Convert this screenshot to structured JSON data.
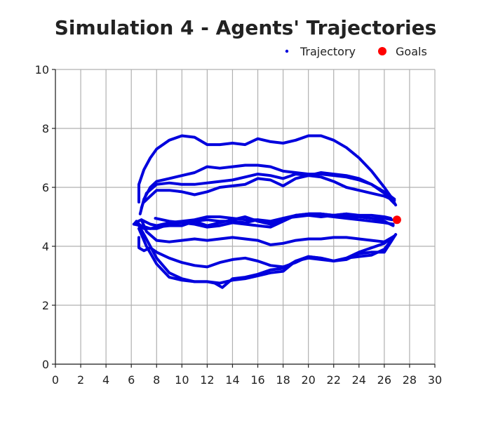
{
  "chart_data": {
    "type": "line",
    "title": "Simulation 4 - Agents' Trajectories",
    "xlabel": "",
    "ylabel": "",
    "xlim": [
      0,
      30
    ],
    "ylim": [
      0,
      10
    ],
    "xticks": [
      0,
      2,
      4,
      6,
      8,
      10,
      12,
      14,
      16,
      18,
      20,
      22,
      24,
      26,
      28,
      30
    ],
    "yticks": [
      0,
      2,
      4,
      6,
      8,
      10
    ],
    "grid": true,
    "legend": {
      "placement": "top-right",
      "entries": [
        {
          "label": "Trajectory",
          "marker": "small-dot",
          "color": "#0000dd"
        },
        {
          "label": "Goals",
          "marker": "dot",
          "color": "#ff0000"
        }
      ]
    },
    "colors": {
      "trajectory": "#0000dd",
      "goal": "#ff0000"
    },
    "series": [
      {
        "name": "Trajectory",
        "points": [
          [
            6.6,
            5.5
          ],
          [
            6.6,
            6.1
          ],
          [
            7.0,
            6.6
          ],
          [
            7.5,
            7.0
          ],
          [
            8.0,
            7.3
          ],
          [
            9.0,
            7.6
          ],
          [
            10.0,
            7.75
          ],
          [
            11.0,
            7.7
          ],
          [
            12.0,
            7.45
          ],
          [
            13.0,
            7.45
          ],
          [
            14.0,
            7.5
          ],
          [
            15.0,
            7.45
          ],
          [
            16.0,
            7.65
          ],
          [
            17.0,
            7.55
          ],
          [
            18.0,
            7.5
          ],
          [
            19.0,
            7.6
          ],
          [
            20.0,
            7.75
          ],
          [
            21.0,
            7.75
          ],
          [
            22.0,
            7.6
          ],
          [
            23.0,
            7.35
          ],
          [
            24.0,
            7.0
          ],
          [
            25.0,
            6.55
          ],
          [
            26.0,
            6.0
          ],
          [
            26.5,
            5.7
          ],
          [
            26.9,
            5.4
          ]
        ]
      },
      {
        "name": "Trajectory",
        "points": [
          [
            6.7,
            5.1
          ],
          [
            7.0,
            5.6
          ],
          [
            7.5,
            6.0
          ],
          [
            8.0,
            6.2
          ],
          [
            9.0,
            6.3
          ],
          [
            10.0,
            6.4
          ],
          [
            11.0,
            6.5
          ],
          [
            12.0,
            6.7
          ],
          [
            13.0,
            6.65
          ],
          [
            14.0,
            6.7
          ],
          [
            15.0,
            6.75
          ],
          [
            16.0,
            6.75
          ],
          [
            17.0,
            6.7
          ],
          [
            18.0,
            6.55
          ],
          [
            19.0,
            6.5
          ],
          [
            20.0,
            6.45
          ],
          [
            21.0,
            6.45
          ],
          [
            22.0,
            6.4
          ],
          [
            23.0,
            6.35
          ],
          [
            24.0,
            6.25
          ],
          [
            25.0,
            6.1
          ],
          [
            26.0,
            5.8
          ],
          [
            26.8,
            5.45
          ]
        ]
      },
      {
        "name": "Trajectory",
        "points": [
          [
            6.8,
            5.3
          ],
          [
            7.2,
            5.8
          ],
          [
            8.0,
            6.1
          ],
          [
            9.0,
            6.15
          ],
          [
            10.0,
            6.1
          ],
          [
            11.0,
            6.1
          ],
          [
            12.0,
            6.15
          ],
          [
            13.0,
            6.2
          ],
          [
            14.0,
            6.25
          ],
          [
            15.0,
            6.35
          ],
          [
            16.0,
            6.45
          ],
          [
            17.0,
            6.4
          ],
          [
            18.0,
            6.3
          ],
          [
            19.0,
            6.45
          ],
          [
            20.0,
            6.4
          ],
          [
            21.0,
            6.5
          ],
          [
            22.0,
            6.45
          ],
          [
            23.0,
            6.4
          ],
          [
            24.0,
            6.3
          ],
          [
            25.0,
            6.1
          ],
          [
            26.0,
            5.85
          ],
          [
            26.8,
            5.6
          ]
        ]
      },
      {
        "name": "Trajectory",
        "points": [
          [
            7.0,
            5.5
          ],
          [
            8.0,
            5.9
          ],
          [
            9.0,
            5.9
          ],
          [
            10.0,
            5.85
          ],
          [
            11.0,
            5.75
          ],
          [
            12.0,
            5.85
          ],
          [
            13.0,
            6.0
          ],
          [
            14.0,
            6.05
          ],
          [
            15.0,
            6.1
          ],
          [
            16.0,
            6.3
          ],
          [
            17.0,
            6.25
          ],
          [
            18.0,
            6.05
          ],
          [
            19.0,
            6.3
          ],
          [
            20.0,
            6.4
          ],
          [
            21.0,
            6.35
          ],
          [
            22.0,
            6.2
          ],
          [
            23.0,
            6.0
          ],
          [
            24.0,
            5.9
          ],
          [
            25.0,
            5.8
          ],
          [
            26.0,
            5.7
          ],
          [
            26.8,
            5.55
          ]
        ]
      },
      {
        "name": "Trajectory",
        "points": [
          [
            6.3,
            4.8
          ],
          [
            6.8,
            4.9
          ],
          [
            7.5,
            4.75
          ],
          [
            8.0,
            4.7
          ],
          [
            9.0,
            4.8
          ],
          [
            10.0,
            4.85
          ],
          [
            11.0,
            4.9
          ],
          [
            12.0,
            5.0
          ],
          [
            13.0,
            5.0
          ],
          [
            14.0,
            4.95
          ],
          [
            15.0,
            4.9
          ],
          [
            16.0,
            4.9
          ],
          [
            17.0,
            4.85
          ],
          [
            18.0,
            4.95
          ],
          [
            19.0,
            5.05
          ],
          [
            20.0,
            5.1
          ],
          [
            21.0,
            5.1
          ],
          [
            22.0,
            5.05
          ],
          [
            23.0,
            5.1
          ],
          [
            24.0,
            5.05
          ],
          [
            25.0,
            5.05
          ],
          [
            26.0,
            5.0
          ],
          [
            26.5,
            4.95
          ]
        ]
      },
      {
        "name": "Trajectory",
        "points": [
          [
            6.2,
            4.75
          ],
          [
            6.8,
            4.7
          ],
          [
            7.5,
            4.6
          ],
          [
            8.0,
            4.65
          ],
          [
            9.0,
            4.7
          ],
          [
            10.0,
            4.7
          ],
          [
            11.0,
            4.85
          ],
          [
            12.0,
            4.7
          ],
          [
            13.0,
            4.8
          ],
          [
            14.0,
            4.9
          ],
          [
            15.0,
            5.0
          ],
          [
            16.0,
            4.85
          ],
          [
            17.0,
            4.75
          ],
          [
            18.0,
            4.9
          ],
          [
            19.0,
            5.05
          ],
          [
            20.0,
            5.1
          ],
          [
            21.0,
            5.1
          ],
          [
            22.0,
            5.05
          ],
          [
            23.0,
            5.0
          ],
          [
            24.0,
            5.0
          ],
          [
            25.0,
            4.95
          ],
          [
            26.0,
            4.95
          ],
          [
            26.6,
            4.9
          ]
        ]
      },
      {
        "name": "Trajectory",
        "points": [
          [
            6.5,
            4.8
          ],
          [
            7.0,
            4.6
          ],
          [
            8.0,
            4.6
          ],
          [
            9.0,
            4.75
          ],
          [
            10.0,
            4.8
          ],
          [
            11.0,
            4.75
          ],
          [
            12.0,
            4.65
          ],
          [
            13.0,
            4.7
          ],
          [
            14.0,
            4.8
          ],
          [
            15.0,
            4.75
          ],
          [
            16.0,
            4.7
          ],
          [
            17.0,
            4.65
          ],
          [
            18.0,
            4.85
          ],
          [
            19.0,
            5.05
          ],
          [
            20.0,
            5.05
          ],
          [
            21.0,
            5.05
          ],
          [
            22.0,
            5.0
          ],
          [
            23.0,
            4.95
          ],
          [
            24.0,
            4.9
          ],
          [
            25.0,
            4.85
          ],
          [
            26.0,
            4.8
          ],
          [
            26.7,
            4.75
          ]
        ]
      },
      {
        "name": "Trajectory",
        "points": [
          [
            7.9,
            4.95
          ],
          [
            9.0,
            4.85
          ],
          [
            10.0,
            4.8
          ],
          [
            11.0,
            4.85
          ],
          [
            12.0,
            4.9
          ],
          [
            13.0,
            4.85
          ],
          [
            14.0,
            4.85
          ],
          [
            15.0,
            4.8
          ],
          [
            16.0,
            4.9
          ],
          [
            17.0,
            4.8
          ],
          [
            18.0,
            4.95
          ],
          [
            19.0,
            5.0
          ],
          [
            20.0,
            5.05
          ],
          [
            21.0,
            5.0
          ],
          [
            22.0,
            5.05
          ],
          [
            23.0,
            5.1
          ],
          [
            24.0,
            5.0
          ],
          [
            25.0,
            4.95
          ],
          [
            26.0,
            4.85
          ],
          [
            26.7,
            4.7
          ]
        ]
      },
      {
        "name": "Trajectory",
        "points": [
          [
            6.8,
            4.9
          ],
          [
            7.2,
            4.5
          ],
          [
            8.0,
            4.2
          ],
          [
            9.0,
            4.15
          ],
          [
            10.0,
            4.2
          ],
          [
            11.0,
            4.25
          ],
          [
            12.0,
            4.2
          ],
          [
            13.0,
            4.25
          ],
          [
            14.0,
            4.3
          ],
          [
            15.0,
            4.25
          ],
          [
            16.0,
            4.2
          ],
          [
            17.0,
            4.05
          ],
          [
            18.0,
            4.1
          ],
          [
            19.0,
            4.2
          ],
          [
            20.0,
            4.25
          ],
          [
            21.0,
            4.25
          ],
          [
            22.0,
            4.3
          ],
          [
            23.0,
            4.3
          ],
          [
            24.0,
            4.25
          ],
          [
            25.0,
            4.2
          ],
          [
            26.0,
            4.15
          ],
          [
            26.8,
            4.35
          ]
        ]
      },
      {
        "name": "Trajectory",
        "points": [
          [
            6.6,
            4.3
          ],
          [
            6.6,
            3.95
          ],
          [
            7.0,
            3.85
          ],
          [
            7.5,
            3.95
          ],
          [
            8.0,
            3.8
          ],
          [
            9.0,
            3.6
          ],
          [
            10.0,
            3.45
          ],
          [
            11.0,
            3.35
          ],
          [
            12.0,
            3.3
          ],
          [
            13.0,
            3.45
          ],
          [
            14.0,
            3.55
          ],
          [
            15.0,
            3.6
          ],
          [
            16.0,
            3.5
          ],
          [
            17.0,
            3.35
          ],
          [
            18.0,
            3.3
          ],
          [
            19.0,
            3.45
          ],
          [
            20.0,
            3.65
          ],
          [
            21.0,
            3.6
          ],
          [
            22.0,
            3.5
          ],
          [
            23.0,
            3.6
          ],
          [
            24.0,
            3.8
          ],
          [
            25.0,
            3.95
          ],
          [
            26.0,
            4.1
          ],
          [
            26.8,
            4.35
          ]
        ]
      },
      {
        "name": "Trajectory",
        "points": [
          [
            6.6,
            4.6
          ],
          [
            7.2,
            4.0
          ],
          [
            8.0,
            3.4
          ],
          [
            9.0,
            2.95
          ],
          [
            10.0,
            2.85
          ],
          [
            11.0,
            2.8
          ],
          [
            12.0,
            2.8
          ],
          [
            13.0,
            2.75
          ],
          [
            14.0,
            2.85
          ],
          [
            15.0,
            2.9
          ],
          [
            16.0,
            3.0
          ],
          [
            17.0,
            3.1
          ],
          [
            18.0,
            3.15
          ],
          [
            19.0,
            3.5
          ],
          [
            20.0,
            3.6
          ],
          [
            21.0,
            3.55
          ],
          [
            22.0,
            3.5
          ],
          [
            23.0,
            3.55
          ],
          [
            24.0,
            3.75
          ],
          [
            25.0,
            3.8
          ],
          [
            26.0,
            3.8
          ],
          [
            26.9,
            4.4
          ]
        ]
      },
      {
        "name": "Trajectory",
        "points": [
          [
            6.4,
            4.85
          ],
          [
            7.0,
            4.4
          ],
          [
            8.0,
            3.6
          ],
          [
            9.0,
            3.1
          ],
          [
            10.0,
            2.9
          ],
          [
            11.0,
            2.8
          ],
          [
            12.0,
            2.8
          ],
          [
            12.6,
            2.75
          ],
          [
            13.2,
            2.6
          ],
          [
            14.0,
            2.9
          ],
          [
            15.0,
            2.95
          ],
          [
            16.0,
            3.05
          ],
          [
            17.0,
            3.2
          ],
          [
            18.0,
            3.25
          ],
          [
            19.0,
            3.5
          ],
          [
            20.0,
            3.65
          ],
          [
            21.0,
            3.6
          ],
          [
            22.0,
            3.5
          ],
          [
            23.0,
            3.6
          ],
          [
            24.0,
            3.65
          ],
          [
            25.0,
            3.7
          ],
          [
            26.0,
            3.9
          ],
          [
            26.9,
            4.4
          ]
        ]
      }
    ],
    "goals": [
      {
        "x": 27.0,
        "y": 4.9
      }
    ]
  }
}
